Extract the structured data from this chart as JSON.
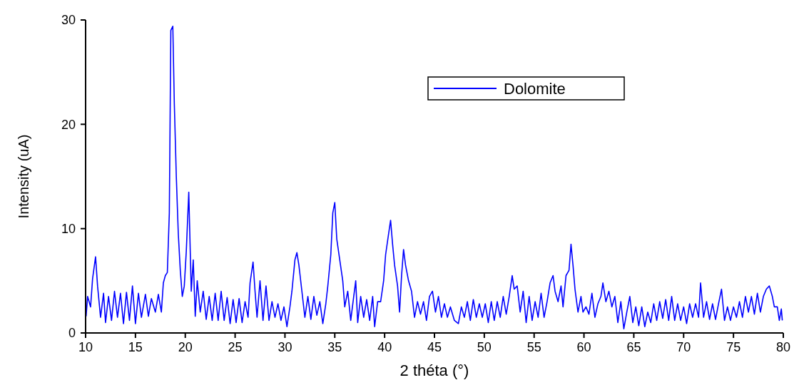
{
  "chart_data": {
    "type": "line",
    "xlabel": "2 théta (°)",
    "ylabel": "Intensity (uA)",
    "xlim": [
      10,
      80
    ],
    "ylim": [
      0,
      30
    ],
    "xticks": [
      10,
      15,
      20,
      25,
      30,
      35,
      40,
      45,
      50,
      55,
      60,
      65,
      70,
      75,
      80
    ],
    "yticks": [
      0,
      10,
      20,
      30
    ],
    "legend": "top right",
    "grid": false,
    "marker": "none",
    "line_style": "solid",
    "series": [
      {
        "name": "Dolomite",
        "color": "#0000ff",
        "x": [
          10.05,
          10.2,
          10.5,
          10.7,
          11.0,
          11.2,
          11.5,
          11.8,
          12.0,
          12.3,
          12.6,
          12.9,
          13.2,
          13.5,
          13.8,
          14.1,
          14.4,
          14.7,
          15.0,
          15.3,
          15.6,
          16.0,
          16.3,
          16.6,
          17.0,
          17.3,
          17.6,
          17.8,
          18.0,
          18.2,
          18.4,
          18.55,
          18.75,
          18.9,
          19.1,
          19.3,
          19.5,
          19.7,
          19.9,
          20.1,
          20.35,
          20.6,
          20.8,
          21.0,
          21.2,
          21.5,
          21.8,
          22.1,
          22.4,
          22.7,
          23.0,
          23.3,
          23.6,
          23.9,
          24.2,
          24.5,
          24.8,
          25.1,
          25.4,
          25.7,
          26.0,
          26.3,
          26.5,
          26.8,
          27.0,
          27.2,
          27.5,
          27.8,
          28.1,
          28.4,
          28.7,
          29.0,
          29.3,
          29.6,
          29.9,
          30.2,
          30.5,
          30.7,
          31.0,
          31.2,
          31.4,
          31.7,
          32.0,
          32.3,
          32.6,
          32.9,
          33.2,
          33.5,
          33.8,
          34.1,
          34.3,
          34.6,
          34.8,
          35.0,
          35.2,
          35.5,
          35.8,
          36.0,
          36.3,
          36.6,
          36.9,
          37.1,
          37.3,
          37.6,
          37.9,
          38.2,
          38.5,
          38.8,
          39.0,
          39.3,
          39.6,
          39.9,
          40.1,
          40.4,
          40.6,
          40.8,
          41.0,
          41.3,
          41.5,
          41.7,
          41.9,
          42.1,
          42.4,
          42.7,
          43.0,
          43.3,
          43.6,
          43.9,
          44.2,
          44.5,
          44.8,
          45.1,
          45.4,
          45.7,
          46.0,
          46.3,
          46.6,
          47.0,
          47.4,
          47.7,
          48.0,
          48.3,
          48.6,
          48.9,
          49.2,
          49.5,
          49.8,
          50.1,
          50.4,
          50.7,
          51.0,
          51.3,
          51.6,
          51.9,
          52.2,
          52.5,
          52.8,
          53.0,
          53.3,
          53.6,
          53.9,
          54.2,
          54.5,
          54.8,
          55.1,
          55.4,
          55.7,
          56.0,
          56.3,
          56.6,
          56.9,
          57.1,
          57.4,
          57.7,
          57.9,
          58.2,
          58.5,
          58.7,
          58.9,
          59.1,
          59.4,
          59.7,
          59.9,
          60.2,
          60.5,
          60.8,
          61.1,
          61.4,
          61.7,
          61.9,
          62.2,
          62.5,
          62.8,
          63.1,
          63.4,
          63.7,
          64.0,
          64.3,
          64.6,
          64.9,
          65.2,
          65.5,
          65.8,
          66.1,
          66.4,
          66.7,
          67.0,
          67.3,
          67.6,
          67.9,
          68.2,
          68.5,
          68.8,
          69.1,
          69.4,
          69.7,
          70.0,
          70.3,
          70.6,
          70.9,
          71.2,
          71.5,
          71.7,
          72.0,
          72.3,
          72.6,
          72.9,
          73.2,
          73.5,
          73.8,
          74.1,
          74.4,
          74.7,
          75.0,
          75.3,
          75.6,
          75.9,
          76.2,
          76.5,
          76.8,
          77.1,
          77.4,
          77.7,
          78.0,
          78.3,
          78.6,
          78.9,
          79.1,
          79.4,
          79.6,
          79.8,
          79.9
        ],
        "values": [
          1.6,
          3.5,
          2.5,
          5.2,
          7.3,
          4.5,
          1.5,
          3.8,
          1.0,
          3.5,
          1.2,
          4.0,
          1.5,
          3.8,
          0.9,
          3.9,
          1.2,
          4.5,
          0.9,
          3.8,
          1.5,
          3.7,
          1.6,
          3.3,
          2.0,
          3.7,
          2.0,
          4.8,
          5.5,
          5.8,
          11.5,
          29,
          29.4,
          22,
          15,
          9.5,
          6,
          3.5,
          4.5,
          7.8,
          13.5,
          4,
          7,
          1.6,
          5,
          2,
          4,
          1.3,
          3.5,
          1.2,
          3.8,
          1.2,
          4.0,
          1.2,
          3.4,
          0.9,
          3.2,
          1.0,
          3.3,
          1.0,
          3.0,
          1.5,
          4.8,
          6.8,
          4.0,
          1.5,
          5.0,
          1.2,
          4.5,
          1.2,
          3.0,
          1.5,
          2.8,
          1.2,
          2.5,
          0.6,
          2.5,
          4.0,
          7.0,
          7.7,
          6.5,
          4.0,
          1.5,
          3.5,
          1.3,
          3.5,
          1.7,
          3.0,
          0.9,
          2.8,
          4.5,
          7.5,
          11.5,
          12.5,
          9.0,
          7.0,
          5.0,
          2.5,
          4.0,
          1.2,
          3.5,
          5.0,
          1.0,
          3.5,
          1.5,
          3.2,
          1.2,
          3.5,
          0.6,
          3.0,
          3.0,
          5.0,
          7.5,
          9.5,
          10.8,
          8.5,
          6.5,
          4.5,
          2.0,
          5.5,
          8.0,
          6.5,
          5.0,
          4.0,
          1.5,
          3.0,
          1.8,
          3.0,
          1.2,
          3.5,
          4.0,
          2.0,
          3.5,
          1.5,
          2.8,
          1.5,
          2.5,
          1.2,
          0.9,
          2.5,
          1.5,
          3.0,
          1.2,
          3.2,
          1.5,
          2.8,
          1.5,
          2.8,
          1.0,
          3.0,
          1.2,
          3.0,
          1.5,
          3.5,
          1.8,
          3.5,
          5.5,
          4.2,
          4.5,
          2.0,
          4.0,
          1.0,
          3.5,
          1.2,
          3.0,
          1.5,
          3.8,
          1.5,
          3.0,
          4.8,
          5.5,
          4.0,
          3.0,
          4.5,
          2.5,
          5.5,
          6.0,
          8.5,
          6.5,
          4.2,
          2.0,
          3.5,
          2.0,
          2.5,
          1.8,
          3.8,
          1.5,
          2.8,
          3.5,
          4.8,
          3.0,
          4.0,
          2.5,
          3.5,
          1.0,
          3.0,
          0.4,
          2.0,
          3.5,
          1.0,
          2.5,
          0.7,
          2.5,
          0.6,
          2.0,
          1.0,
          2.8,
          1.2,
          3.0,
          1.4,
          3.2,
          1.2,
          3.5,
          1.2,
          2.8,
          1.2,
          2.5,
          0.9,
          2.8,
          1.5,
          2.8,
          1.5,
          4.8,
          1.5,
          3.0,
          1.3,
          2.8,
          1.3,
          2.8,
          4.2,
          1.2,
          2.5,
          1.2,
          2.5,
          1.5,
          3.0,
          1.5,
          3.5,
          2.0,
          3.5,
          1.8,
          3.8,
          2.0,
          3.5,
          4.2,
          4.5,
          3.5,
          2.5,
          2.5,
          1.2,
          2.3,
          1.2
        ]
      }
    ]
  }
}
